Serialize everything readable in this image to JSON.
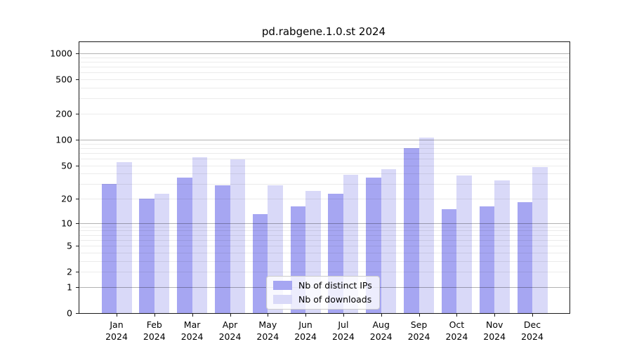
{
  "title": "pd.rabgene.1.0.st 2024",
  "chart_data": {
    "type": "bar",
    "scale": "log1p",
    "title": "pd.rabgene.1.0.st 2024",
    "categories": [
      "Jan",
      "Feb",
      "Mar",
      "Apr",
      "May",
      "Jun",
      "Jul",
      "Aug",
      "Sep",
      "Oct",
      "Nov",
      "Dec"
    ],
    "category_year": "2024",
    "series": [
      {
        "name": "Nb of distinct IPs",
        "color": "#a6a6f2",
        "values": [
          30,
          20,
          36,
          29,
          13,
          16,
          23,
          36,
          80,
          15,
          16,
          18
        ]
      },
      {
        "name": "Nb of downloads",
        "color": "#d9d9f8",
        "values": [
          55,
          23,
          62,
          59,
          29,
          25,
          39,
          45,
          105,
          38,
          33,
          48
        ]
      }
    ],
    "yticks": [
      0,
      1,
      2,
      5,
      10,
      20,
      50,
      100,
      200,
      500,
      1000
    ],
    "ytick_labels": [
      "0",
      "1",
      "2",
      "5",
      "10",
      "20",
      "50",
      "100",
      "200",
      "500",
      "1000"
    ],
    "minor_gridlines": [
      2,
      3,
      4,
      5,
      6,
      7,
      8,
      9,
      20,
      30,
      40,
      50,
      60,
      70,
      80,
      90,
      200,
      300,
      400,
      500,
      600,
      700,
      800,
      900
    ],
    "major_gridlines": [
      1,
      10,
      100,
      1000
    ],
    "ylim": [
      0,
      1350
    ],
    "xlabel": "",
    "ylabel": "",
    "grid": true,
    "legend_position": "lower center"
  }
}
